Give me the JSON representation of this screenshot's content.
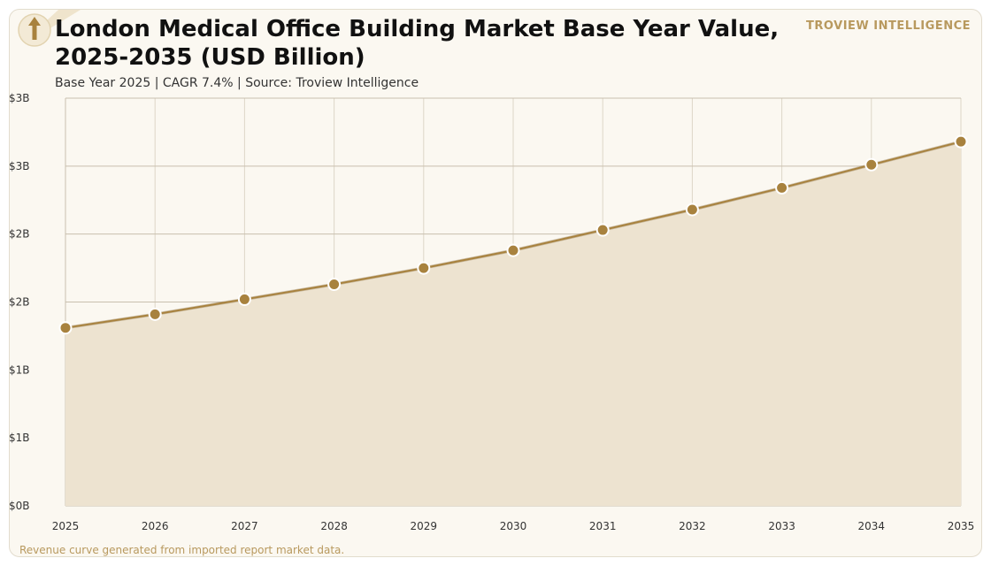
{
  "header": {
    "title": "London Medical Office Building Market Base Year Value, 2025-2035 (USD Billion)",
    "subtitle": "Base Year 2025 | CAGR 7.4% | Source: Troview Intelligence",
    "brand": "TROVIEW INTELLIGENCE",
    "logo_icon": "upload-arrow-icon"
  },
  "footer": {
    "note": "Revenue curve generated from imported report market data."
  },
  "colors": {
    "line": "#a8823e",
    "marker": "#a8823e",
    "area": "#ede3d0",
    "grid": "#c9bfae",
    "brand": "#b8995e"
  },
  "chart_data": {
    "type": "area",
    "title": "London Medical Office Building Market Base Year Value, 2025-2035 (USD Billion)",
    "xlabel": "",
    "ylabel": "",
    "x": [
      2025,
      2026,
      2027,
      2028,
      2029,
      2030,
      2031,
      2032,
      2033,
      2034,
      2035
    ],
    "series": [
      {
        "values": [
          1.31,
          1.41,
          1.52,
          1.63,
          1.75,
          1.88,
          2.03,
          2.18,
          2.34,
          2.51,
          2.68
        ]
      }
    ],
    "ylim": [
      0,
      3.0
    ],
    "yticks": [
      0,
      0.5,
      1.0,
      1.5,
      2.0,
      2.5,
      3.0
    ],
    "ytick_labels": [
      "$0B",
      "$1B",
      "$1B",
      "$2B",
      "$2B",
      "$3B",
      "$3B"
    ],
    "xtick_labels": [
      "2025",
      "2026",
      "2027",
      "2028",
      "2029",
      "2030",
      "2031",
      "2032",
      "2033",
      "2034",
      "2035"
    ],
    "grid": true,
    "legend": "none"
  }
}
